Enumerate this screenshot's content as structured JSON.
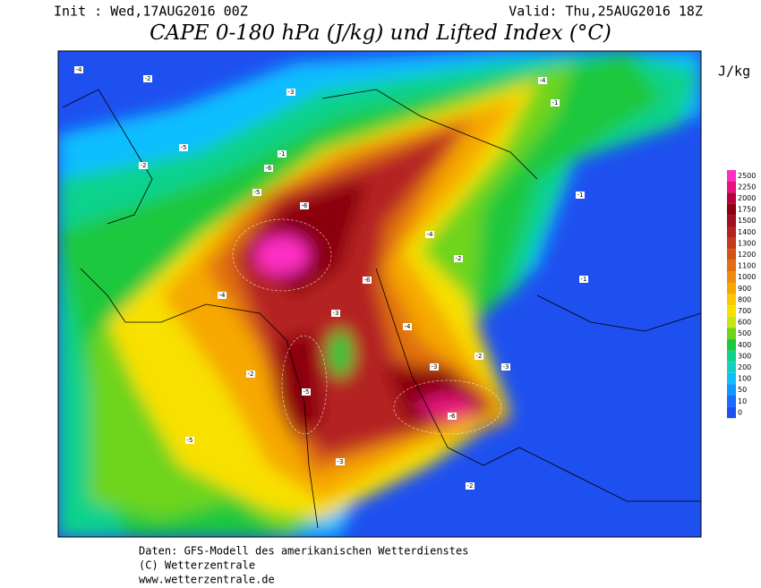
{
  "header": {
    "init": "Init : Wed,17AUG2016 00Z",
    "valid": "Valid: Thu,25AUG2016 18Z",
    "title": "CAPE 0-180 hPa (J/kg) und Lifted Index (°C)"
  },
  "legend": {
    "unit": "J/kg",
    "levels": [
      2500,
      2250,
      2000,
      1750,
      1500,
      1400,
      1300,
      1200,
      1100,
      1000,
      900,
      800,
      700,
      600,
      500,
      400,
      300,
      200,
      100,
      50,
      10,
      0
    ],
    "colors": [
      "#ff2ec4",
      "#e8137e",
      "#b5003f",
      "#8c0010",
      "#a01020",
      "#b52222",
      "#c43a1a",
      "#d25510",
      "#e07010",
      "#ee8c10",
      "#f6a800",
      "#fcc800",
      "#f8e000",
      "#c8e614",
      "#6ed41e",
      "#1ec83c",
      "#10d28c",
      "#10d2c8",
      "#10beff",
      "#1496ff",
      "#1a6eff",
      "#1e50f0"
    ]
  },
  "contour_labels": [
    -4,
    -2,
    -5,
    -6,
    -3,
    -1,
    -2,
    -4,
    -5,
    -6,
    -3,
    -4,
    -2,
    -1,
    -6,
    -5,
    -3,
    -2,
    -4,
    -1,
    -5,
    -3,
    -2,
    -6,
    -1,
    -4,
    -3,
    -2
  ],
  "footer": [
    "Daten: GFS-Modell des amerikanischen Wetterdienstes",
    "(C) Wetterzentrale",
    "www.wetterzentrale.de"
  ]
}
